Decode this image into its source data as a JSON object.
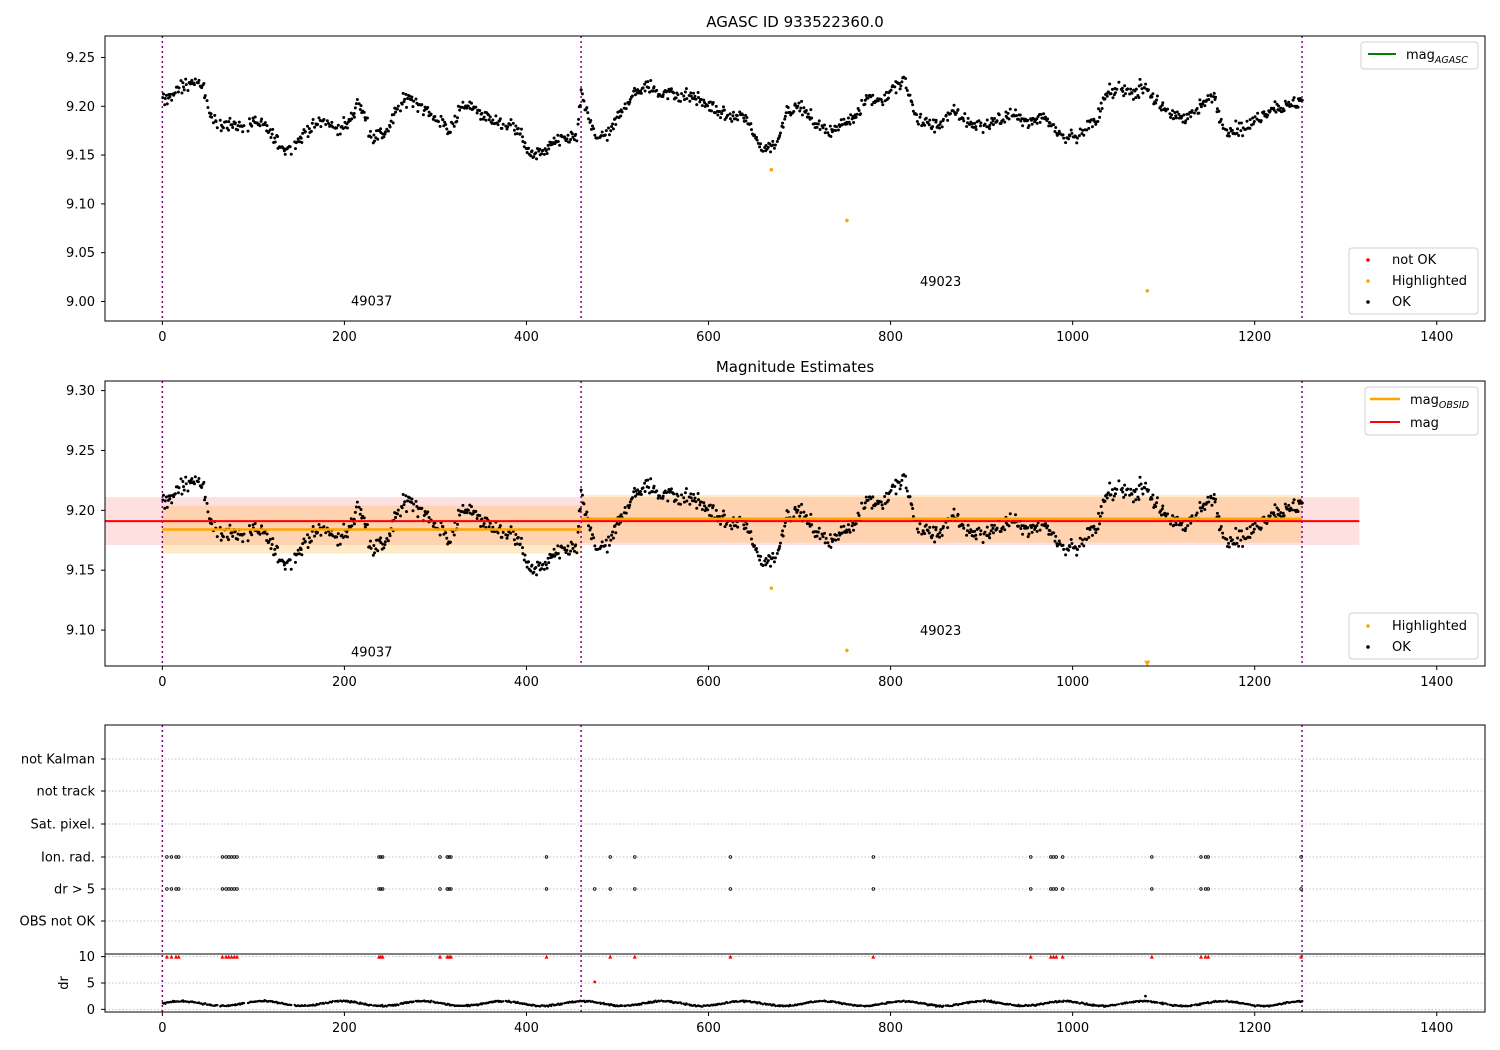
{
  "colors": {
    "ok": "#000000",
    "highlighted": "#ffa500",
    "not_ok": "#ff0000",
    "mag_agasc": "#008000",
    "mag_obsid": "#ffa500",
    "mag": "#ff0000",
    "obs_boundary": "#800080",
    "grid": "#b0b0b0"
  },
  "chart_data": [
    {
      "type": "scatter",
      "title": "AGASC ID 933522360.0",
      "xlim": [
        -63,
        1453
      ],
      "ylim": [
        8.98,
        9.272
      ],
      "xticks": [
        0,
        200,
        400,
        600,
        800,
        1000,
        1200,
        1400
      ],
      "yticks": [
        9.0,
        9.05,
        9.1,
        9.15,
        9.2,
        9.25
      ],
      "xtick_labels": [
        "0",
        "200",
        "400",
        "600",
        "800",
        "1000",
        "1200",
        "1400"
      ],
      "ytick_labels": [
        "9.00",
        "9.05",
        "9.10",
        "9.15",
        "9.20",
        "9.25"
      ],
      "obs_boundaries": [
        0,
        460,
        1252
      ],
      "obsid_labels": [
        {
          "text": "49037",
          "x": 230,
          "y": 8.996
        },
        {
          "text": "49023",
          "x": 855,
          "y": 9.016
        }
      ],
      "legend_upper": {
        "position": "upper right",
        "entries": [
          {
            "label": "mag",
            "sub": "AGASC",
            "kind": "line",
            "color": "#008000"
          }
        ]
      },
      "legend_lower": {
        "position": "lower right",
        "entries": [
          {
            "label": "not OK",
            "kind": "marker",
            "color": "#ff0000"
          },
          {
            "label": "Highlighted",
            "kind": "marker",
            "color": "#ffa500"
          },
          {
            "label": "OK",
            "kind": "marker",
            "color": "#000000"
          }
        ]
      },
      "series": [
        {
          "name": "OK",
          "color": "#000000",
          "markers": "dense time series of ~1250 points, y in 9.14 to 9.24",
          "x": [
            0,
            15,
            30,
            45,
            52,
            60,
            70,
            85,
            100,
            115,
            125,
            135,
            145,
            160,
            175,
            190,
            205,
            215,
            230,
            245,
            260,
            270,
            285,
            300,
            315,
            325,
            340,
            355,
            375,
            390,
            400,
            410,
            425,
            440,
            455,
            460,
            475,
            490,
            505,
            520,
            535,
            545,
            560,
            580,
            600,
            620,
            640,
            655,
            665,
            675,
            685,
            700,
            715,
            730,
            745,
            760,
            775,
            790,
            805,
            815,
            830,
            850,
            870,
            890,
            910,
            930,
            950,
            970,
            990,
            1005,
            1015,
            1025,
            1035,
            1050,
            1065,
            1080,
            1095,
            1110,
            1125,
            1140,
            1155,
            1165,
            1175,
            1190,
            1205,
            1220,
            1235,
            1250
          ],
          "y": [
            9.205,
            9.215,
            9.225,
            9.22,
            9.19,
            9.18,
            9.182,
            9.18,
            9.183,
            9.176,
            9.165,
            9.155,
            9.16,
            9.178,
            9.185,
            9.178,
            9.183,
            9.205,
            9.17,
            9.172,
            9.2,
            9.21,
            9.2,
            9.188,
            9.175,
            9.195,
            9.2,
            9.19,
            9.18,
            9.178,
            9.155,
            9.148,
            9.16,
            9.165,
            9.168,
            9.21,
            9.168,
            9.17,
            9.198,
            9.215,
            9.22,
            9.215,
            9.212,
            9.21,
            9.2,
            9.19,
            9.19,
            9.16,
            9.158,
            9.163,
            9.195,
            9.2,
            9.185,
            9.175,
            9.18,
            9.19,
            9.21,
            9.205,
            9.22,
            9.225,
            9.185,
            9.18,
            9.195,
            9.18,
            9.183,
            9.19,
            9.185,
            9.188,
            9.17,
            9.168,
            9.18,
            9.182,
            9.21,
            9.218,
            9.215,
            9.22,
            9.2,
            9.19,
            9.19,
            9.2,
            9.21,
            9.178,
            9.176,
            9.178,
            9.19,
            9.2,
            9.2,
            9.205
          ]
        },
        {
          "name": "Highlighted",
          "color": "#ffa500",
          "x": [
            669,
            752,
            1082
          ],
          "y": [
            9.135,
            9.083,
            9.011
          ]
        }
      ]
    },
    {
      "type": "scatter",
      "title": "Magnitude Estimates",
      "xlim": [
        -63,
        1453
      ],
      "ylim": [
        9.07,
        9.308
      ],
      "xticks": [
        0,
        200,
        400,
        600,
        800,
        1000,
        1200,
        1400
      ],
      "yticks": [
        9.1,
        9.15,
        9.2,
        9.25,
        9.3
      ],
      "xtick_labels": [
        "0",
        "200",
        "400",
        "600",
        "800",
        "1000",
        "1200",
        "1400"
      ],
      "ytick_labels": [
        "9.10",
        "9.15",
        "9.20",
        "9.25",
        "9.30"
      ],
      "obs_boundaries": [
        0,
        460,
        1252
      ],
      "obsid_labels": [
        {
          "text": "49037",
          "x": 230,
          "y": 9.078
        },
        {
          "text": "49023",
          "x": 855,
          "y": 9.096
        }
      ],
      "mag_line": {
        "value": 9.191,
        "band": [
          9.171,
          9.211
        ],
        "x_range": [
          -63,
          1315
        ]
      },
      "mag_obsid": [
        {
          "x_range": [
            0,
            460
          ],
          "value": 9.184,
          "band": [
            9.164,
            9.204
          ]
        },
        {
          "x_range": [
            460,
            1252
          ],
          "value": 9.193,
          "band": [
            9.173,
            9.213
          ]
        }
      ],
      "legend_upper": {
        "position": "upper right",
        "entries": [
          {
            "label": "mag",
            "sub": "OBSID",
            "kind": "line",
            "color": "#ffa500"
          },
          {
            "label": "mag",
            "kind": "line",
            "color": "#ff0000"
          }
        ]
      },
      "legend_lower": {
        "position": "lower right",
        "entries": [
          {
            "label": "Highlighted",
            "kind": "marker",
            "color": "#ffa500"
          },
          {
            "label": "OK",
            "kind": "marker",
            "color": "#000000"
          }
        ]
      },
      "series": [
        {
          "name": "Highlighted",
          "color": "#ffa500",
          "x": [
            669,
            752,
            1082
          ],
          "y": [
            9.135,
            9.083,
            9.072
          ]
        }
      ]
    },
    {
      "type": "scatter",
      "title": "",
      "xlim": [
        -63,
        1453
      ],
      "xticks": [
        0,
        200,
        400,
        600,
        800,
        1000,
        1200,
        1400
      ],
      "xtick_labels": [
        "0",
        "200",
        "400",
        "600",
        "800",
        "1000",
        "1200",
        "1400"
      ],
      "obs_boundaries": [
        0,
        460,
        1252
      ],
      "flag_rows": [
        "not Kalman",
        "not track",
        "Sat. pixel.",
        "Ion. rad.",
        "dr > 5",
        "OBS not OK"
      ],
      "flag_points": {
        "Ion. rad.": [
          5,
          10,
          15,
          18,
          66,
          70,
          73,
          76,
          79,
          82,
          238,
          240,
          242,
          305,
          313,
          315,
          317,
          422,
          492,
          519,
          624,
          781,
          954,
          976,
          979,
          982,
          989,
          1087,
          1141,
          1146,
          1149,
          1251
        ],
        "dr > 5": [
          5,
          10,
          15,
          18,
          66,
          70,
          73,
          76,
          79,
          82,
          238,
          240,
          242,
          305,
          313,
          315,
          317,
          422,
          475,
          492,
          519,
          624,
          781,
          954,
          976,
          979,
          982,
          989,
          1087,
          1141,
          1146,
          1149,
          1251
        ]
      },
      "dr": {
        "ylabel": "dr",
        "ylim": [
          -0.5,
          10.5
        ],
        "yticks": [
          0,
          5,
          10
        ],
        "ytick_labels": [
          "0",
          "5",
          "10"
        ],
        "clipped_at_10": [
          5,
          10,
          15,
          18,
          66,
          70,
          73,
          76,
          79,
          82,
          238,
          240,
          242,
          305,
          313,
          315,
          317,
          422,
          492,
          519,
          624,
          781,
          954,
          976,
          979,
          982,
          989,
          1087,
          1141,
          1146,
          1149,
          1251
        ],
        "outliers": [
          {
            "x": 475,
            "y": 5.2
          },
          {
            "x": 1080,
            "y": 2.5
          }
        ]
      }
    }
  ]
}
